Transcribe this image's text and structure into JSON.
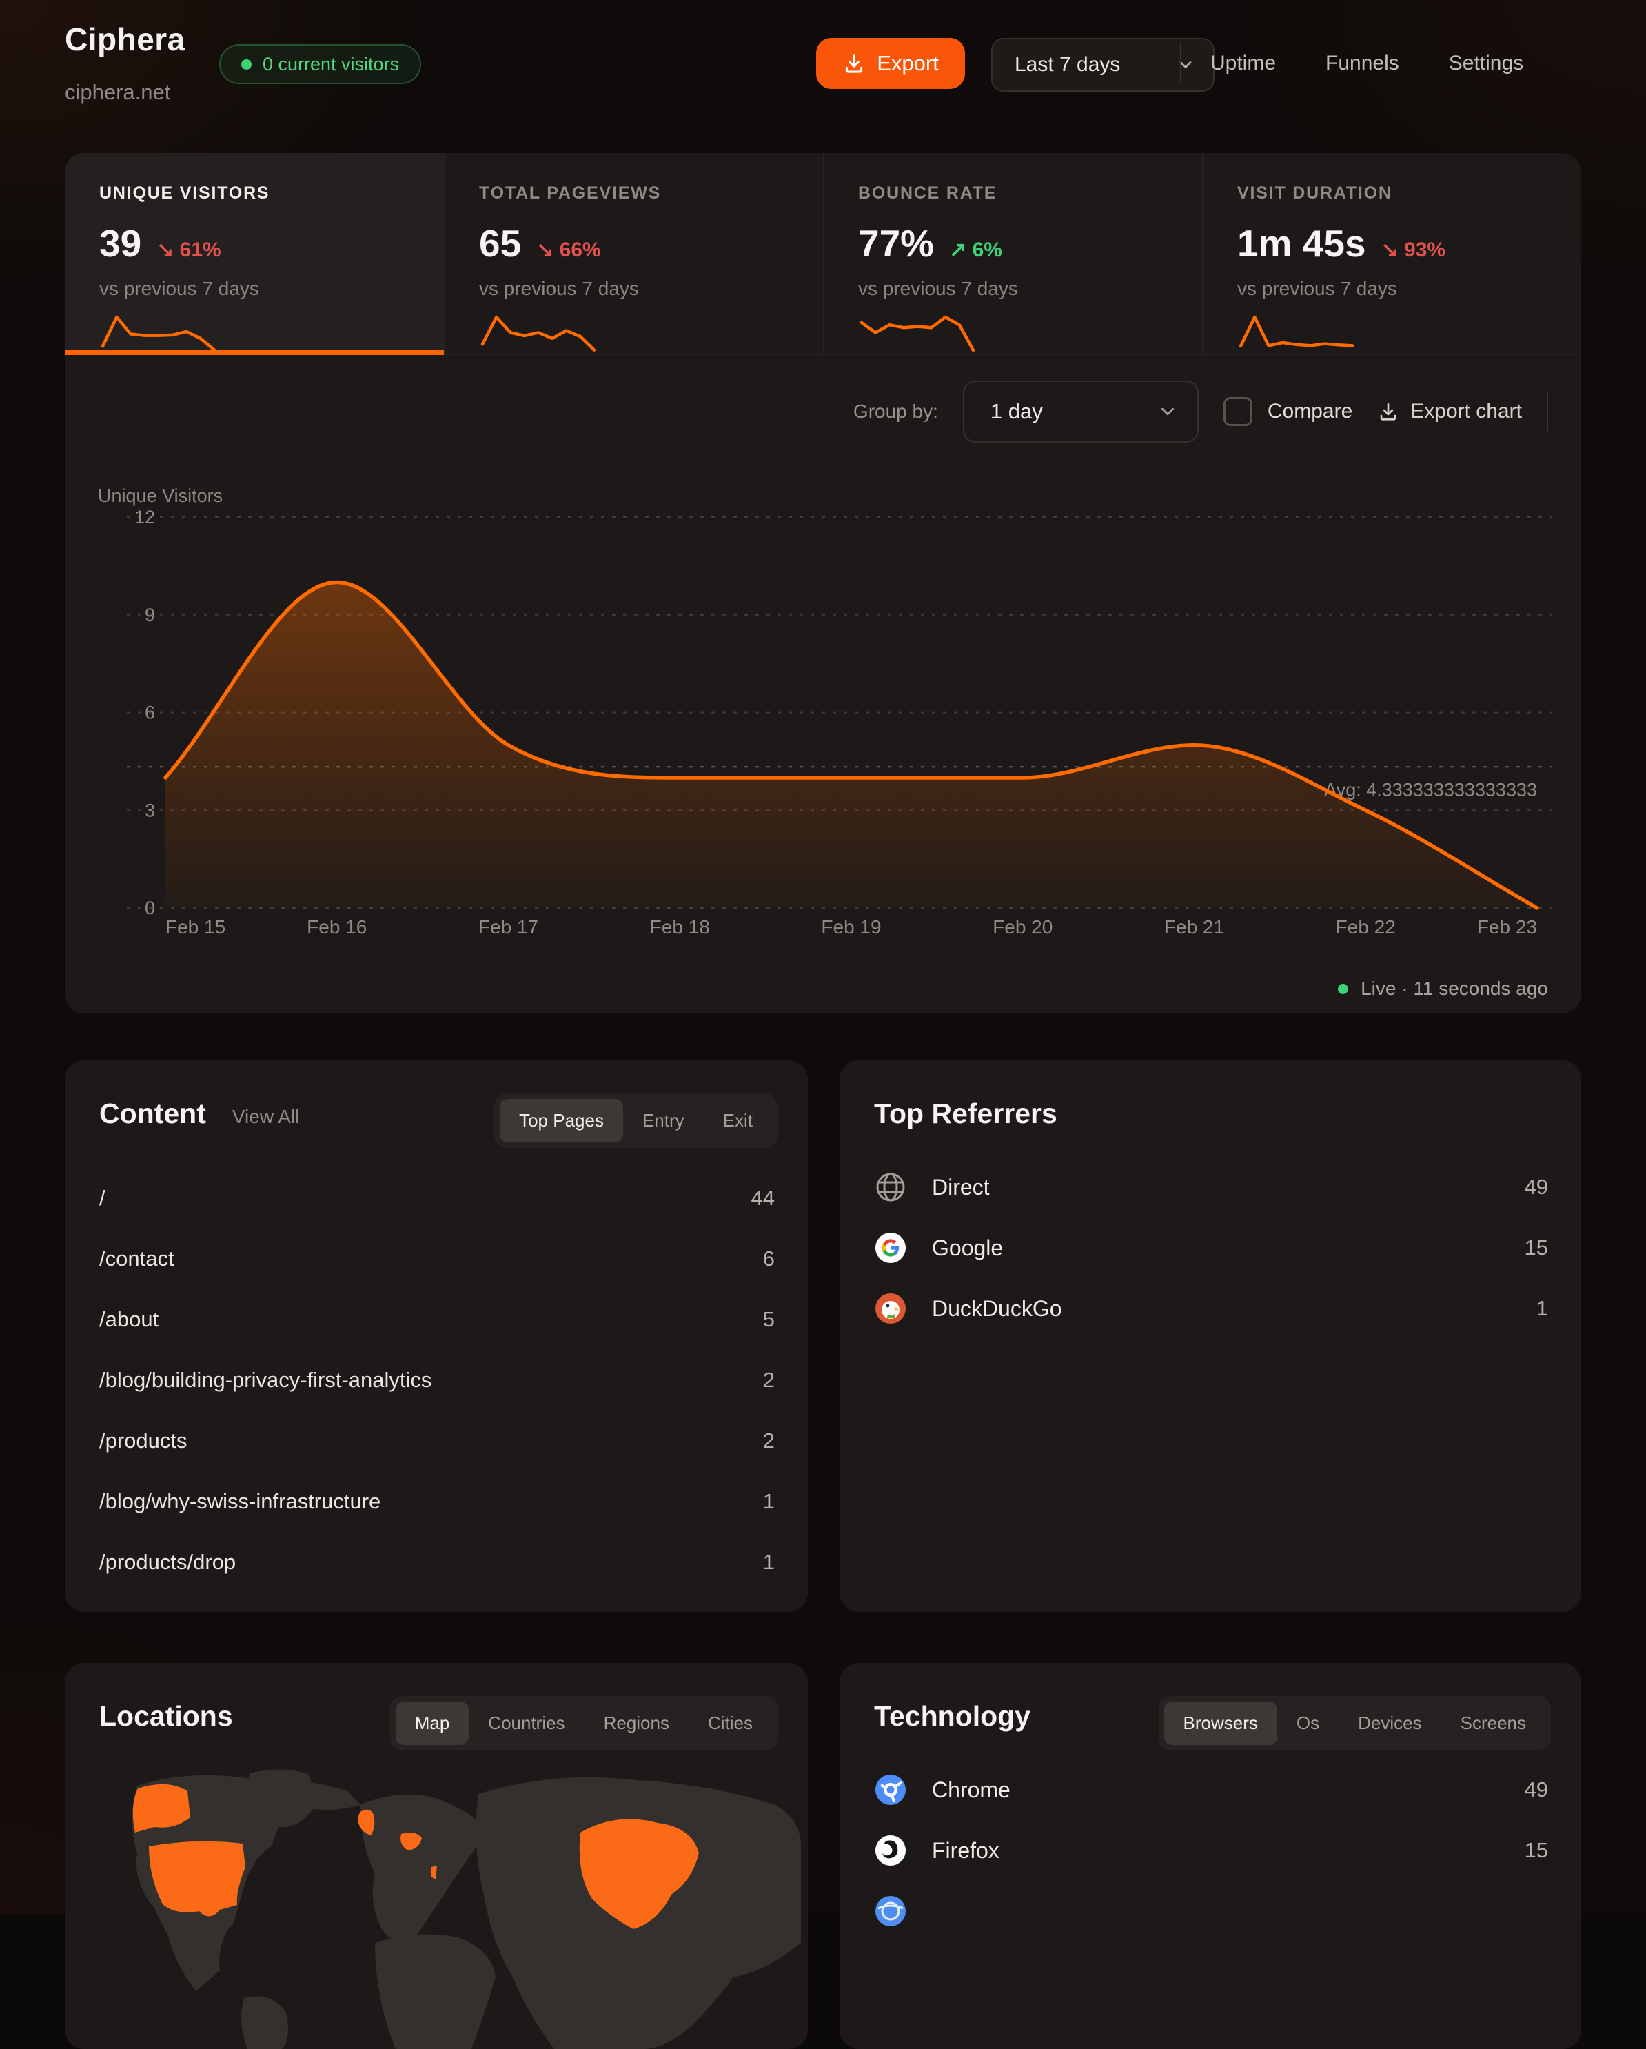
{
  "header": {
    "title": "Ciphera",
    "domain": "ciphera.net",
    "visitors_badge": "0 current visitors",
    "export_label": "Export",
    "range_label": "Last 7 days",
    "nav": [
      {
        "label": "Uptime"
      },
      {
        "label": "Funnels"
      },
      {
        "label": "Settings"
      }
    ]
  },
  "stats": [
    {
      "label": "UNIQUE VISITORS",
      "value": "39",
      "delta": "61%",
      "direction": "down",
      "compare": "vs previous 7 days",
      "active": true,
      "spark": [
        2,
        8,
        4.5,
        4.2,
        4.2,
        4.3,
        5,
        3.6,
        1.2
      ]
    },
    {
      "label": "TOTAL PAGEVIEWS",
      "value": "65",
      "delta": "66%",
      "direction": "down",
      "compare": "vs previous 7 days",
      "active": false,
      "spark": [
        3,
        10,
        6,
        5.2,
        6,
        4.5,
        6.5,
        5,
        1.5
      ]
    },
    {
      "label": "BOUNCE RATE",
      "value": "77%",
      "delta": "6%",
      "direction": "up",
      "compare": "vs previous 7 days",
      "active": false,
      "spark": [
        6,
        4.2,
        5.6,
        5.1,
        5.3,
        5.1,
        7,
        5.6,
        1
      ]
    },
    {
      "label": "VISIT DURATION",
      "value": "1m 45s",
      "delta": "93%",
      "direction": "down",
      "compare": "vs previous 7 days",
      "active": false,
      "spark": [
        2.5,
        10,
        2.6,
        3.4,
        2.9,
        2.6,
        3.1,
        2.8,
        2.6
      ]
    }
  ],
  "chart_controls": {
    "group_by_label": "Group by:",
    "group_by_value": "1 day",
    "compare_label": "Compare",
    "export_chart_label": "Export chart"
  },
  "chart_data": {
    "type": "area",
    "title": "",
    "ylabel": "Unique Visitors",
    "xlabel": "",
    "categories": [
      "Feb 15",
      "Feb 16",
      "Feb 17",
      "Feb 18",
      "Feb 19",
      "Feb 20",
      "Feb 21",
      "Feb 22",
      "Feb 23"
    ],
    "values": [
      4,
      10,
      5,
      4,
      4,
      4,
      5,
      3,
      0
    ],
    "ylim": [
      0,
      12
    ],
    "yticks": [
      0,
      3,
      6,
      9,
      12
    ],
    "grid": "dashed horizontal",
    "legend": "none",
    "avg": 4.333333333333333,
    "avg_label": "Avg: 4.333333333333333",
    "line_color": "#ff6b00"
  },
  "live_status": "Live · 11 seconds ago",
  "content": {
    "title": "Content",
    "view_all": "View All",
    "tabs": [
      "Top Pages",
      "Entry",
      "Exit"
    ],
    "active_tab": "Top Pages",
    "rows": [
      {
        "path": "/",
        "count": "44"
      },
      {
        "path": "/contact",
        "count": "6"
      },
      {
        "path": "/about",
        "count": "5"
      },
      {
        "path": "/blog/building-privacy-first-analytics",
        "count": "2"
      },
      {
        "path": "/products",
        "count": "2"
      },
      {
        "path": "/blog/why-swiss-infrastructure",
        "count": "1"
      },
      {
        "path": "/products/drop",
        "count": "1"
      }
    ]
  },
  "referrers": {
    "title": "Top Referrers",
    "rows": [
      {
        "name": "Direct",
        "count": "49",
        "icon": "globe-icon"
      },
      {
        "name": "Google",
        "count": "15",
        "icon": "google-icon"
      },
      {
        "name": "DuckDuckGo",
        "count": "1",
        "icon": "duckduckgo-icon"
      }
    ]
  },
  "locations": {
    "title": "Locations",
    "tabs": [
      "Map",
      "Countries",
      "Regions",
      "Cities"
    ],
    "active_tab": "Map"
  },
  "technology": {
    "title": "Technology",
    "tabs": [
      "Browsers",
      "Os",
      "Devices",
      "Screens"
    ],
    "active_tab": "Browsers",
    "rows": [
      {
        "name": "Chrome",
        "count": "49",
        "icon": "chrome-icon"
      },
      {
        "name": "Firefox",
        "count": "15",
        "icon": "firefox-icon"
      },
      {
        "name": "",
        "count": "",
        "icon": "browser-icon"
      }
    ]
  },
  "colors": {
    "accent": "#ff6b00",
    "accent_button": "#f9560a",
    "negative": "#e0524b",
    "positive": "#3fd178",
    "badge_green": "#55d67e",
    "grid": "#413c39",
    "card_bg": "#1c1918"
  }
}
